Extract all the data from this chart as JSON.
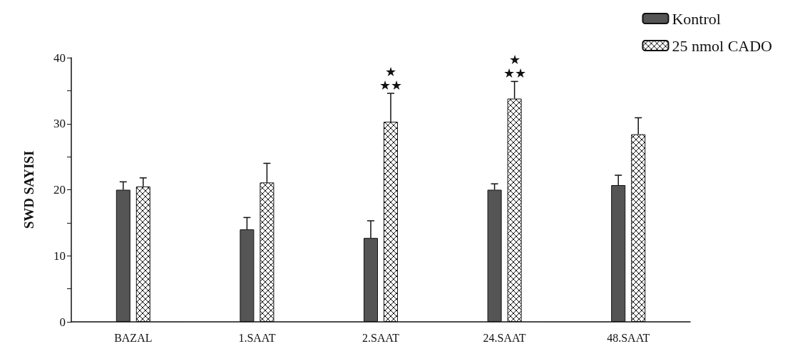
{
  "chart_data": {
    "type": "bar",
    "ylabel": "SWD SAYISI",
    "categories": [
      "BAZAL",
      "1.SAAT",
      "2.SAAT",
      "24.SAAT",
      "48.SAAT"
    ],
    "series": [
      {
        "name": "Kontrol",
        "color": "#555555",
        "values": [
          20,
          14,
          12.7,
          20,
          20.7
        ],
        "errors": [
          [
            20,
            21.2
          ],
          [
            14,
            15.8
          ],
          [
            12.7,
            15.3
          ],
          [
            20,
            20.9
          ],
          [
            20.7,
            22.2
          ]
        ]
      },
      {
        "name": "25 nmol CADO",
        "color": "#111111",
        "values": [
          20.5,
          21.1,
          30.3,
          33.8,
          28.4
        ],
        "errors": [
          [
            20.5,
            21.8
          ],
          [
            21.1,
            24
          ],
          [
            30.3,
            34.6
          ],
          [
            33.8,
            36.4
          ],
          [
            28.4,
            30.9
          ]
        ]
      }
    ],
    "ylim": [
      0,
      40
    ],
    "yticks": [
      0,
      {
        "value": 5,
        "label": null
      },
      10,
      {
        "value": 15,
        "label": null
      },
      20,
      {
        "value": 25,
        "label": null
      },
      30,
      {
        "value": 35,
        "label": null
      },
      40
    ],
    "grid": false,
    "legend": "top right",
    "annotations": [
      {
        "text": "★\n★★",
        "x": "2.SAAT",
        "y": 30.3
      },
      {
        "text": "★\n★★",
        "x": "24.SAAT",
        "y": 33.8
      }
    ]
  }
}
